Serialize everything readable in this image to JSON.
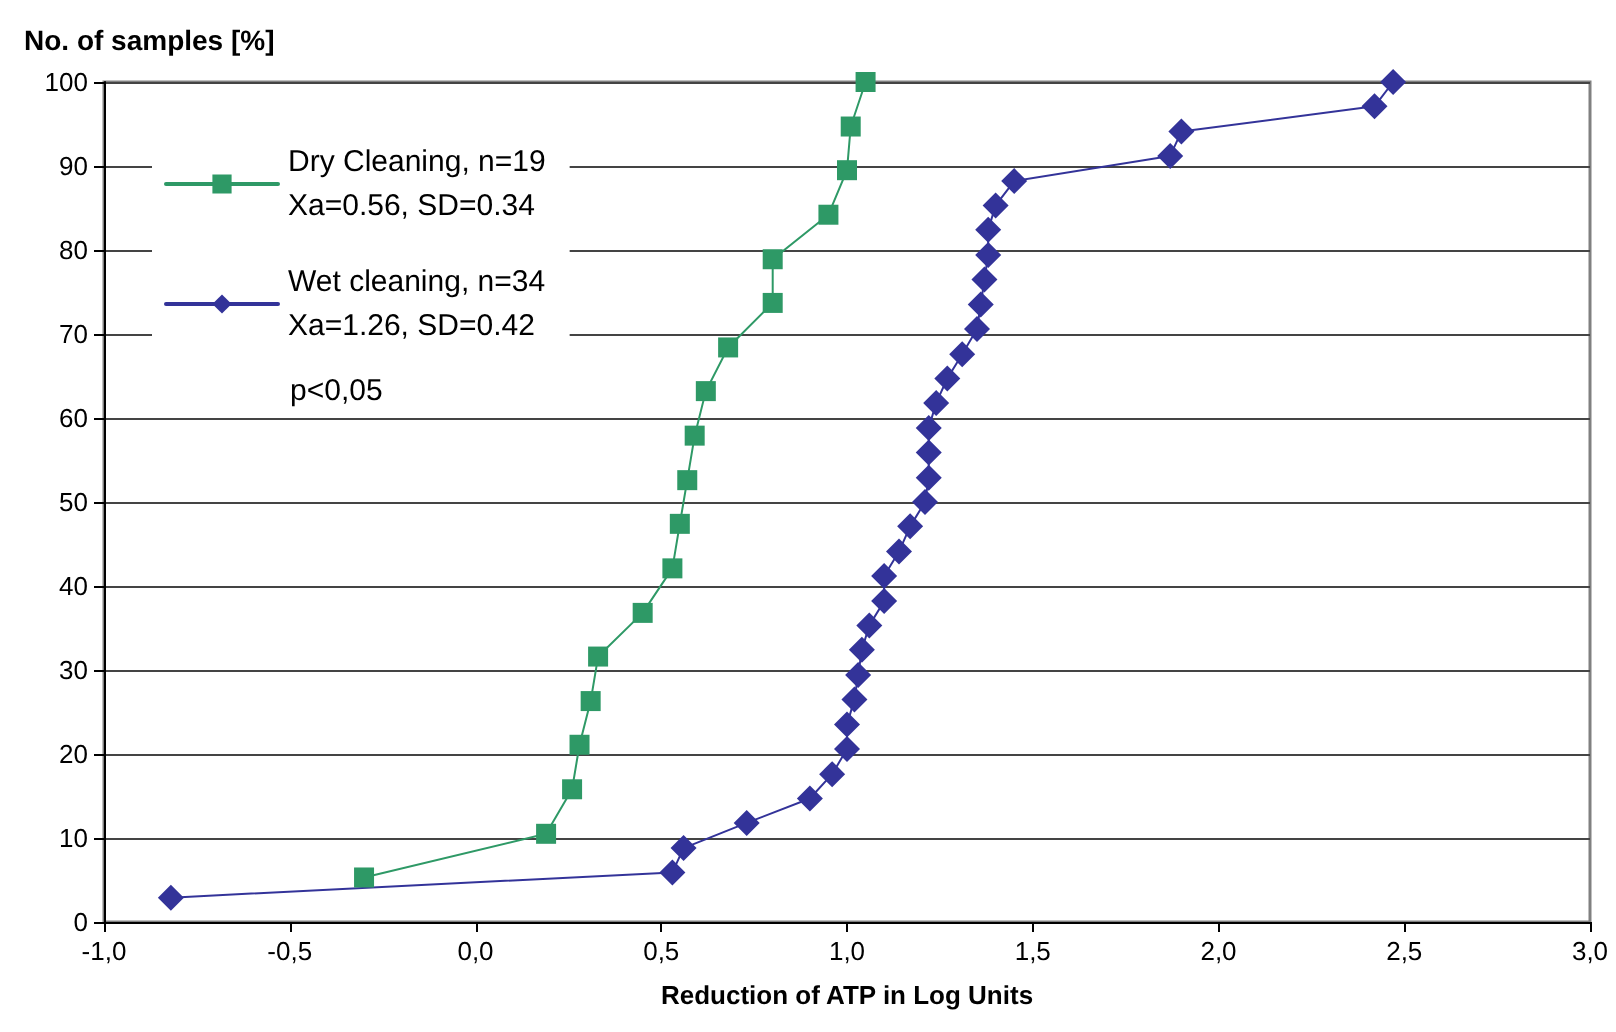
{
  "chart_data": {
    "type": "line",
    "ylabel": "No. of samples [%]",
    "xlabel": "Reduction of ATP in Log Units",
    "series": [
      {
        "name": "Dry Cleaning, n=19\nXa=0.56, SD=0.34",
        "color": "#2e9966",
        "marker": "square",
        "x": [
          -0.3,
          0.19,
          0.26,
          0.28,
          0.31,
          0.33,
          0.45,
          0.53,
          0.55,
          0.57,
          0.59,
          0.62,
          0.68,
          0.8,
          0.8,
          0.95,
          1.0,
          1.01,
          1.05
        ],
        "values": [
          5.3,
          10.5,
          15.8,
          21.1,
          26.3,
          31.6,
          36.8,
          42.1,
          47.4,
          52.6,
          57.9,
          63.2,
          68.4,
          73.7,
          78.9,
          84.2,
          89.5,
          94.7,
          100
        ]
      },
      {
        "name": "Wet cleaning, n=34\nXa=1.26, SD=0.42",
        "color": "#333399",
        "marker": "diamond",
        "x": [
          -0.82,
          0.53,
          0.56,
          0.73,
          0.9,
          0.96,
          1.0,
          1.0,
          1.02,
          1.03,
          1.04,
          1.06,
          1.1,
          1.1,
          1.14,
          1.17,
          1.21,
          1.22,
          1.22,
          1.22,
          1.24,
          1.27,
          1.31,
          1.35,
          1.36,
          1.37,
          1.38,
          1.38,
          1.4,
          1.45,
          1.87,
          1.9,
          2.42,
          2.47
        ],
        "values": [
          2.9,
          5.9,
          8.8,
          11.8,
          14.7,
          17.6,
          20.6,
          23.5,
          26.5,
          29.4,
          32.4,
          35.3,
          38.2,
          41.2,
          44.1,
          47.1,
          50,
          52.9,
          55.9,
          58.8,
          61.8,
          64.7,
          67.6,
          70.6,
          73.5,
          76.5,
          79.4,
          82.4,
          85.3,
          88.2,
          91.2,
          94.1,
          97.1,
          100
        ]
      }
    ],
    "xlim": [
      -1,
      3
    ],
    "xticks": [
      {
        "value": -1,
        "label": "-1,0"
      },
      {
        "value": -0.5,
        "label": "-0,5"
      },
      {
        "value": 0,
        "label": "0,0"
      },
      {
        "value": 0.5,
        "label": "0,5"
      },
      {
        "value": 1,
        "label": "1,0"
      },
      {
        "value": 1.5,
        "label": "1,5"
      },
      {
        "value": 2,
        "label": "2,0"
      },
      {
        "value": 2.5,
        "label": "2,5"
      },
      {
        "value": 3,
        "label": "3,0"
      }
    ],
    "ylim": [
      0,
      100
    ],
    "yticks": [
      0,
      10,
      20,
      30,
      40,
      50,
      60,
      70,
      80,
      90,
      100
    ],
    "grid": "y",
    "legend": "top left",
    "annotations": [
      "p<0,05"
    ]
  }
}
